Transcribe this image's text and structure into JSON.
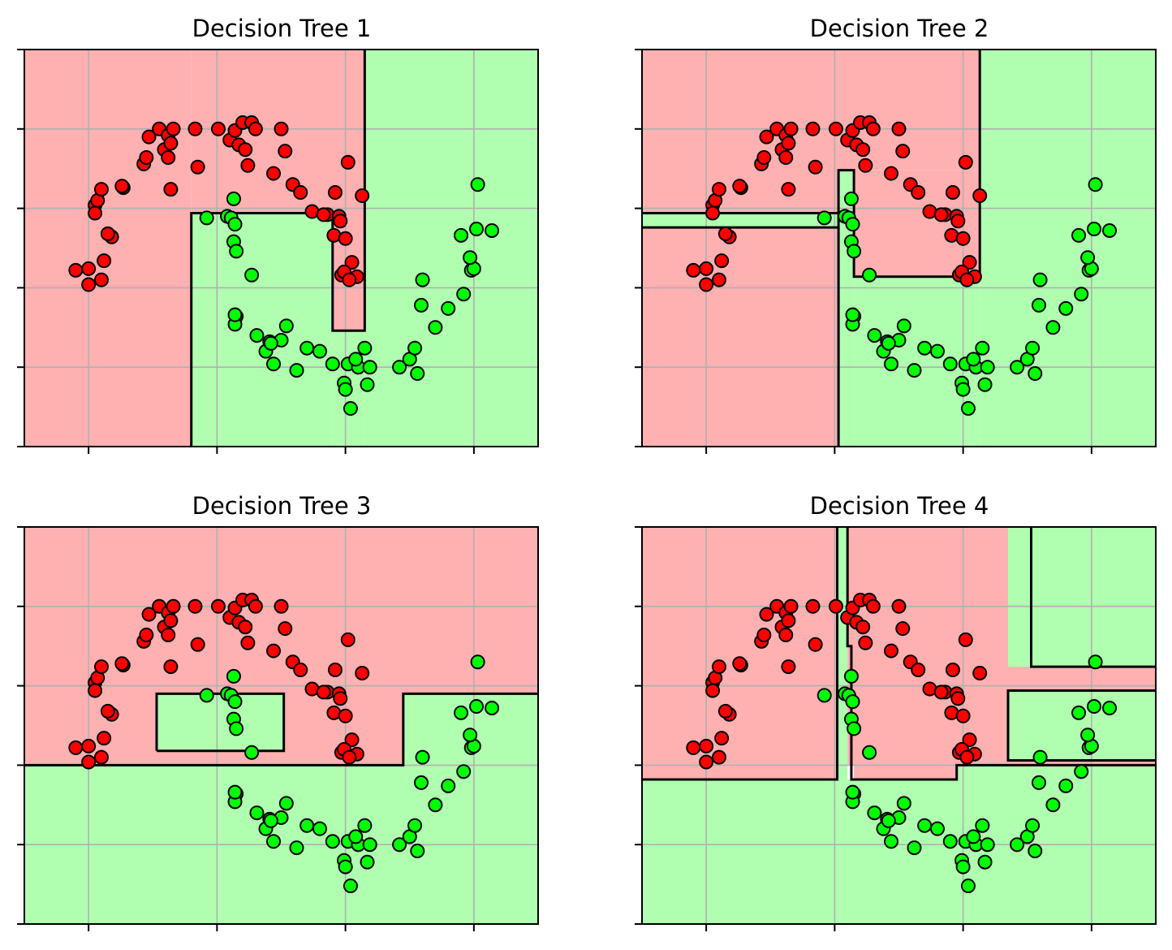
{
  "colors": {
    "class0_region": "#ffb0b0",
    "class1_region": "#b0ffb0",
    "class0_point": "#ff0000",
    "class1_point": "#00ff00",
    "boundary": "#000000",
    "grid": "#b0b0b0"
  },
  "chart_data": [
    {
      "type": "scatter",
      "title": "Decision Tree 1",
      "xlim": [
        -1.5,
        2.5
      ],
      "ylim": [
        -1.0,
        1.5
      ],
      "xticks": [
        -1.0,
        0.0,
        1.0,
        2.0
      ],
      "yticks": [
        -1.0,
        -0.5,
        0.0,
        0.5,
        1.0,
        1.5
      ],
      "tick_labels_shown": false,
      "grid": true,
      "regions": [
        {
          "class": 0,
          "x": [
            -1.5,
            -0.2
          ],
          "y": [
            -1.0,
            1.5
          ]
        },
        {
          "class": 0,
          "x": [
            -0.2,
            1.15
          ],
          "y": [
            0.47,
            1.5
          ]
        },
        {
          "class": 1,
          "x": [
            -0.2,
            0.9
          ],
          "y": [
            -1.0,
            0.47
          ]
        },
        {
          "class": 1,
          "x": [
            0.9,
            1.15
          ],
          "y": [
            -1.0,
            -0.27
          ]
        },
        {
          "class": 0,
          "x": [
            0.9,
            1.15
          ],
          "y": [
            -0.27,
            0.47
          ]
        },
        {
          "class": 1,
          "x": [
            1.15,
            2.5
          ],
          "y": [
            -1.0,
            1.5
          ]
        }
      ],
      "boundaries": [
        [
          [
            -0.2,
            -1.0
          ],
          [
            -0.2,
            0.47
          ],
          [
            0.9,
            0.47
          ],
          [
            0.9,
            -0.27
          ],
          [
            1.15,
            -0.27
          ],
          [
            1.15,
            1.5
          ]
        ]
      ]
    },
    {
      "type": "scatter",
      "title": "Decision Tree 2",
      "xlim": [
        -1.5,
        2.5
      ],
      "ylim": [
        -1.0,
        1.5
      ],
      "xticks": [
        -1.0,
        0.0,
        1.0,
        2.0
      ],
      "yticks": [
        -1.0,
        -0.5,
        0.0,
        0.5,
        1.0,
        1.5
      ],
      "tick_labels_shown": false,
      "grid": true,
      "regions": [
        {
          "class": 0,
          "x": [
            -1.5,
            0.03
          ],
          "y": [
            -1.0,
            0.38
          ]
        },
        {
          "class": 1,
          "x": [
            -1.5,
            0.03
          ],
          "y": [
            0.38,
            0.47
          ]
        },
        {
          "class": 0,
          "x": [
            -1.5,
            0.03
          ],
          "y": [
            0.47,
            1.5
          ]
        },
        {
          "class": 1,
          "x": [
            0.03,
            0.15
          ],
          "y": [
            -1.0,
            0.74
          ]
        },
        {
          "class": 0,
          "x": [
            0.03,
            1.13
          ],
          "y": [
            0.74,
            1.5
          ]
        },
        {
          "class": 1,
          "x": [
            0.15,
            1.13
          ],
          "y": [
            -1.0,
            0.07
          ]
        },
        {
          "class": 0,
          "x": [
            0.15,
            1.13
          ],
          "y": [
            0.07,
            0.74
          ]
        },
        {
          "class": 1,
          "x": [
            1.13,
            2.5
          ],
          "y": [
            -1.0,
            1.5
          ]
        }
      ],
      "boundaries": [
        [
          [
            0.03,
            -1.0
          ],
          [
            0.03,
            0.74
          ],
          [
            0.15,
            0.74
          ],
          [
            0.15,
            0.07
          ],
          [
            1.13,
            0.07
          ],
          [
            1.13,
            1.5
          ]
        ],
        [
          [
            -1.5,
            0.38
          ],
          [
            0.03,
            0.38
          ]
        ],
        [
          [
            -1.5,
            0.47
          ],
          [
            0.03,
            0.47
          ]
        ]
      ]
    },
    {
      "type": "scatter",
      "title": "Decision Tree 3",
      "xlim": [
        -1.5,
        2.5
      ],
      "ylim": [
        -1.0,
        1.5
      ],
      "xticks": [
        -1.0,
        0.0,
        1.0,
        2.0
      ],
      "yticks": [
        -1.0,
        -0.5,
        0.0,
        0.5,
        1.0,
        1.5
      ],
      "tick_labels_shown": false,
      "grid": true,
      "regions": [
        {
          "class": 0,
          "x": [
            -1.5,
            2.5
          ],
          "y": [
            0.0,
            1.5
          ]
        },
        {
          "class": 1,
          "x": [
            -1.5,
            2.5
          ],
          "y": [
            -1.0,
            0.0
          ]
        },
        {
          "class": 1,
          "x": [
            1.45,
            2.5
          ],
          "y": [
            0.0,
            0.45
          ]
        },
        {
          "class": 1,
          "x": [
            -0.47,
            0.52
          ],
          "y": [
            0.09,
            0.45
          ]
        }
      ],
      "boundaries": [
        [
          [
            -1.5,
            0.0
          ],
          [
            1.45,
            0.0
          ],
          [
            1.45,
            0.45
          ],
          [
            2.5,
            0.45
          ]
        ],
        [
          [
            -0.47,
            0.09
          ],
          [
            -0.47,
            0.45
          ],
          [
            0.52,
            0.45
          ],
          [
            0.52,
            0.09
          ],
          [
            -0.47,
            0.09
          ]
        ]
      ]
    },
    {
      "type": "scatter",
      "title": "Decision Tree 4",
      "xlim": [
        -1.5,
        2.5
      ],
      "ylim": [
        -1.0,
        1.5
      ],
      "xticks": [
        -1.0,
        0.0,
        1.0,
        2.0
      ],
      "yticks": [
        -1.0,
        -0.5,
        0.0,
        0.5,
        1.0,
        1.5
      ],
      "tick_labels_shown": false,
      "grid": true,
      "regions": [
        {
          "class": 1,
          "x": [
            -1.5,
            2.5
          ],
          "y": [
            -1.0,
            -0.09
          ]
        },
        {
          "class": 0,
          "x": [
            -1.5,
            0.02
          ],
          "y": [
            -0.09,
            1.5
          ]
        },
        {
          "class": 1,
          "x": [
            0.02,
            0.1
          ],
          "y": [
            -0.09,
            1.5
          ]
        },
        {
          "class": 0,
          "x": [
            0.1,
            2.5
          ],
          "y": [
            0.0,
            1.5
          ]
        },
        {
          "class": 0,
          "x": [
            0.15,
            0.95
          ],
          "y": [
            -0.09,
            0.0
          ]
        },
        {
          "class": 1,
          "x": [
            0.95,
            2.5
          ],
          "y": [
            -0.09,
            0.0
          ]
        },
        {
          "class": 1,
          "x": [
            1.35,
            2.5
          ],
          "y": [
            0.62,
            1.5
          ]
        },
        {
          "class": 1,
          "x": [
            1.35,
            2.5
          ],
          "y": [
            0.62,
            1.5
          ]
        },
        {
          "class": 1,
          "x": [
            1.35,
            2.5
          ],
          "y": [
            0.03,
            0.47
          ]
        }
      ],
      "boundaries": [
        [
          [
            -1.5,
            -0.09
          ],
          [
            0.02,
            -0.09
          ],
          [
            0.02,
            1.5
          ]
        ],
        [
          [
            0.1,
            1.5
          ],
          [
            0.1,
            0.75
          ],
          [
            0.13,
            0.75
          ],
          [
            0.13,
            -0.09
          ],
          [
            0.95,
            -0.09
          ],
          [
            0.95,
            0.0
          ],
          [
            2.5,
            0.0
          ]
        ],
        [
          [
            1.53,
            1.5
          ],
          [
            1.53,
            0.62
          ],
          [
            2.5,
            0.62
          ]
        ],
        [
          [
            2.5,
            0.47
          ],
          [
            1.35,
            0.47
          ],
          [
            1.35,
            0.03
          ],
          [
            2.5,
            0.03
          ]
        ]
      ]
    }
  ],
  "points": {
    "class0": [
      [
        -1.1,
        0.11
      ],
      [
        -1.0,
        0.12
      ],
      [
        -0.88,
        0.17
      ],
      [
        -0.82,
        0.32
      ],
      [
        -0.85,
        0.34
      ],
      [
        -1.0,
        0.02
      ],
      [
        -0.9,
        0.05
      ],
      [
        -0.95,
        0.52
      ],
      [
        -0.93,
        0.55
      ],
      [
        -0.95,
        0.47
      ],
      [
        -0.9,
        0.62
      ],
      [
        -0.73,
        0.63
      ],
      [
        -0.74,
        0.64
      ],
      [
        -0.57,
        0.78
      ],
      [
        -0.55,
        0.82
      ],
      [
        -0.53,
        0.95
      ],
      [
        -0.45,
        1.0
      ],
      [
        -0.41,
        0.87
      ],
      [
        -0.38,
        0.82
      ],
      [
        -0.38,
        0.96
      ],
      [
        -0.36,
        0.91
      ],
      [
        -0.34,
        1.0
      ],
      [
        -0.36,
        0.62
      ],
      [
        -0.17,
        1.0
      ],
      [
        0.01,
        1.0
      ],
      [
        -0.15,
        0.76
      ],
      [
        0.1,
        0.93
      ],
      [
        0.14,
        0.99
      ],
      [
        0.17,
        0.9
      ],
      [
        0.2,
        1.04
      ],
      [
        0.27,
        1.04
      ],
      [
        0.3,
        1.0
      ],
      [
        0.22,
        0.87
      ],
      [
        0.24,
        0.77
      ],
      [
        0.5,
        1.0
      ],
      [
        0.53,
        0.86
      ],
      [
        0.44,
        0.72
      ],
      [
        0.59,
        0.65
      ],
      [
        0.92,
        0.6
      ],
      [
        0.86,
        0.46
      ],
      [
        0.95,
        0.45
      ],
      [
        0.96,
        0.42
      ],
      [
        0.91,
        0.33
      ],
      [
        1.02,
        0.79
      ],
      [
        1.13,
        0.58
      ],
      [
        1.0,
        0.31
      ],
      [
        1.05,
        0.16
      ],
      [
        1.09,
        0.07
      ],
      [
        0.97,
        0.08
      ],
      [
        0.99,
        0.1
      ],
      [
        1.03,
        0.05
      ],
      [
        0.74,
        0.48
      ],
      [
        0.83,
        0.46
      ],
      [
        0.65,
        0.6
      ]
    ],
    "class1": [
      [
        -0.08,
        0.44
      ],
      [
        0.08,
        0.45
      ],
      [
        0.13,
        0.56
      ],
      [
        0.11,
        0.44
      ],
      [
        0.14,
        0.4
      ],
      [
        0.13,
        0.29
      ],
      [
        0.15,
        0.23
      ],
      [
        0.27,
        0.08
      ],
      [
        0.15,
        -0.18
      ],
      [
        0.14,
        -0.23
      ],
      [
        0.14,
        -0.17
      ],
      [
        0.31,
        -0.3
      ],
      [
        0.41,
        -0.34
      ],
      [
        0.44,
        -0.48
      ],
      [
        0.54,
        -0.24
      ],
      [
        0.5,
        -0.33
      ],
      [
        0.38,
        -0.4
      ],
      [
        0.42,
        -0.35
      ],
      [
        0.7,
        -0.38
      ],
      [
        0.8,
        -0.4
      ],
      [
        0.62,
        -0.52
      ],
      [
        0.9,
        -0.48
      ],
      [
        0.99,
        -0.6
      ],
      [
        1.0,
        -0.64
      ],
      [
        1.04,
        -0.76
      ],
      [
        1.02,
        -0.48
      ],
      [
        1.1,
        -0.5
      ],
      [
        1.15,
        -0.38
      ],
      [
        1.17,
        -0.61
      ],
      [
        1.19,
        -0.5
      ],
      [
        1.42,
        -0.5
      ],
      [
        1.5,
        -0.45
      ],
      [
        1.54,
        -0.38
      ],
      [
        1.56,
        -0.54
      ],
      [
        1.6,
        0.05
      ],
      [
        1.59,
        -0.11
      ],
      [
        1.7,
        -0.25
      ],
      [
        1.8,
        -0.13
      ],
      [
        1.92,
        -0.04
      ],
      [
        1.98,
        0.11
      ],
      [
        2.0,
        0.12
      ],
      [
        1.9,
        0.33
      ],
      [
        1.97,
        0.19
      ],
      [
        2.02,
        0.37
      ],
      [
        2.14,
        0.36
      ],
      [
        2.03,
        0.65
      ],
      [
        1.08,
        -0.45
      ]
    ]
  }
}
